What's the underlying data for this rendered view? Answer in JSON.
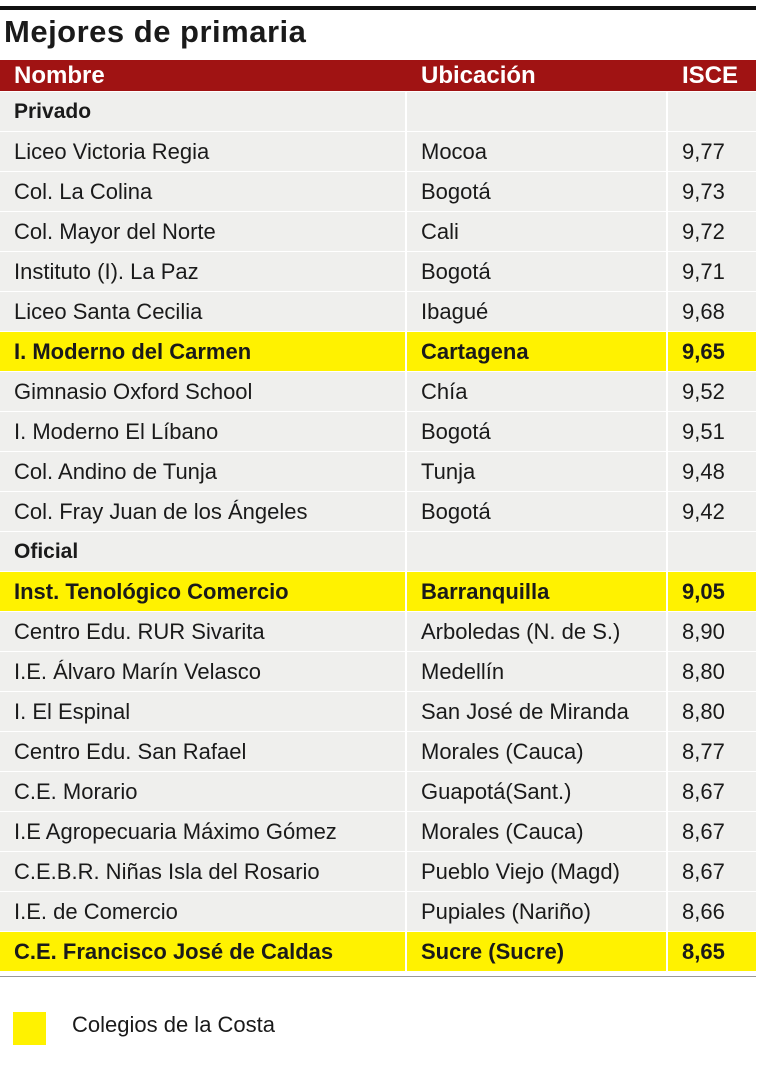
{
  "title": "Mejores de primaria",
  "table": {
    "header": [
      "Nombre",
      "Ubicación",
      "ISCE"
    ],
    "header_color": "#a01313",
    "sections": [
      {
        "label": "Privado",
        "rows": [
          {
            "cells": [
              "Liceo Victoria Regia",
              "Mocoa",
              "9,77"
            ]
          },
          {
            "cells": [
              "Col. La Colina",
              "Bogotá",
              "9,73"
            ]
          },
          {
            "cells": [
              "Col. Mayor del Norte",
              "Cali",
              "9,72"
            ]
          },
          {
            "cells": [
              "Instituto (I). La Paz",
              "Bogotá",
              "9,71"
            ]
          },
          {
            "cells": [
              "Liceo Santa Cecilia",
              "Ibagué",
              "9,68"
            ]
          },
          {
            "cells": [
              "I. Moderno del Carmen",
              "Cartagena",
              "9,65"
            ],
            "highlight": true
          },
          {
            "cells": [
              "Gimnasio Oxford School",
              "Chía",
              "9,52"
            ]
          },
          {
            "cells": [
              "I. Moderno El Líbano",
              "Bogotá",
              "9,51"
            ]
          },
          {
            "cells": [
              "Col. Andino de Tunja",
              "Tunja",
              "9,48"
            ]
          },
          {
            "cells": [
              "Col. Fray Juan de los Ángeles",
              "Bogotá",
              "9,42"
            ]
          }
        ]
      },
      {
        "label": "Oficial",
        "rows": [
          {
            "cells": [
              "Inst. Tenológico Comercio",
              "Barranquilla",
              "9,05"
            ],
            "highlight": true
          },
          {
            "cells": [
              "Centro Edu. RUR Sivarita",
              "Arboledas (N. de S.)",
              "8,90"
            ]
          },
          {
            "cells": [
              "I.E. Álvaro Marín Velasco",
              "Medellín",
              "8,80"
            ]
          },
          {
            "cells": [
              "I. El Espinal",
              "San José de Miranda",
              "8,80"
            ]
          },
          {
            "cells": [
              "Centro Edu. San Rafael",
              "Morales (Cauca)",
              "8,77"
            ]
          },
          {
            "cells": [
              "C.E. Morario",
              "Guapotá(Sant.)",
              "8,67"
            ]
          },
          {
            "cells": [
              "I.E Agropecuaria Máximo Gómez",
              "Morales (Cauca)",
              "8,67"
            ]
          },
          {
            "cells": [
              "C.E.B.R. Niñas Isla del Rosario",
              "Pueblo Viejo (Magd)",
              "8,67"
            ]
          },
          {
            "cells": [
              "I.E. de Comercio",
              "Pupiales (Nariño)",
              "8,66"
            ]
          },
          {
            "cells": [
              "C.E. Francisco José de Caldas",
              "Sucre (Sucre)",
              "8,65"
            ],
            "highlight": true
          }
        ]
      }
    ]
  },
  "legend": {
    "label": "Colegios de la Costa",
    "color": "#fff200"
  }
}
